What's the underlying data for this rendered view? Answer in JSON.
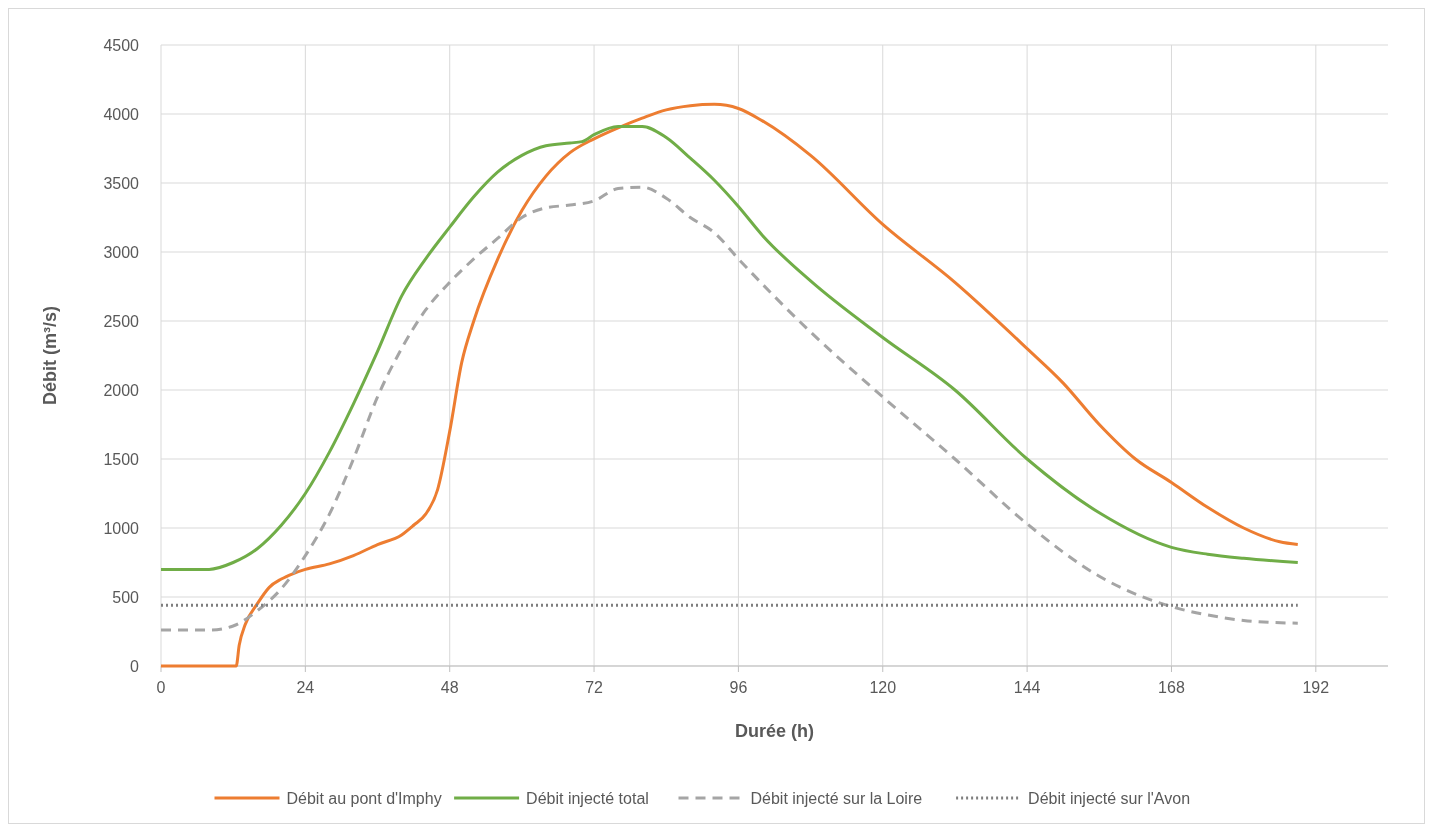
{
  "chart_data": {
    "type": "line",
    "xlabel": "Durée (h)",
    "ylabel": "Débit (m³/s)",
    "xlim": [
      0,
      204
    ],
    "xticks": [
      0,
      24,
      48,
      72,
      96,
      120,
      144,
      168,
      192
    ],
    "ylim": [
      0,
      4500
    ],
    "yticks": [
      0,
      500,
      1000,
      1500,
      2000,
      2500,
      3000,
      3500,
      4000,
      4500
    ],
    "grid": true,
    "legend": "bottom",
    "series": [
      {
        "name": "Débit au pont d'Imphy",
        "color": "#ed7d31",
        "line_style": "solid",
        "x": [
          0,
          12.5,
          13,
          14,
          16,
          18,
          20,
          22,
          24,
          28,
          32,
          36,
          40,
          42,
          44,
          46,
          48,
          50,
          52,
          56,
          60,
          64,
          68,
          72,
          76,
          80,
          84,
          88,
          92,
          96,
          100,
          108,
          120,
          132,
          144,
          150,
          156,
          162,
          168,
          174,
          180,
          186,
          189
        ],
        "values": [
          0,
          0,
          150,
          300,
          450,
          570,
          630,
          670,
          700,
          740,
          800,
          880,
          950,
          1020,
          1100,
          1280,
          1700,
          2200,
          2500,
          2950,
          3300,
          3550,
          3720,
          3820,
          3900,
          3970,
          4030,
          4060,
          4070,
          4040,
          3950,
          3700,
          3200,
          2780,
          2300,
          2050,
          1750,
          1500,
          1330,
          1150,
          1000,
          900,
          880
        ]
      },
      {
        "name": "Débit injecté total",
        "color": "#70ad47",
        "line_style": "solid",
        "x": [
          0,
          8,
          12,
          16,
          20,
          24,
          28,
          32,
          36,
          40,
          44,
          48,
          52,
          56,
          60,
          64,
          68,
          70,
          72,
          76,
          80,
          84,
          88,
          92,
          96,
          100,
          108,
          120,
          132,
          144,
          156,
          168,
          174,
          180,
          189
        ],
        "values": [
          700,
          700,
          750,
          850,
          1020,
          1250,
          1550,
          1900,
          2280,
          2680,
          2950,
          3180,
          3400,
          3580,
          3700,
          3770,
          3790,
          3800,
          3850,
          3910,
          3910,
          3830,
          3680,
          3520,
          3330,
          3120,
          2790,
          2380,
          2000,
          1500,
          1110,
          860,
          810,
          780,
          750
        ]
      },
      {
        "name": "Débit injecté sur la Loire",
        "color": "#a5a5a5",
        "line_style": "dashed",
        "x": [
          0,
          8,
          12,
          16,
          20,
          24,
          28,
          32,
          36,
          40,
          44,
          48,
          52,
          56,
          60,
          64,
          68,
          72,
          76,
          80,
          84,
          88,
          92,
          96,
          108,
          120,
          132,
          144,
          156,
          168,
          174,
          180,
          189
        ],
        "values": [
          260,
          260,
          290,
          400,
          560,
          800,
          1100,
          1500,
          1950,
          2300,
          2580,
          2780,
          2950,
          3100,
          3250,
          3320,
          3340,
          3370,
          3460,
          3470,
          3390,
          3250,
          3140,
          2950,
          2420,
          1950,
          1500,
          1030,
          650,
          430,
          370,
          330,
          310
        ]
      },
      {
        "name": "Débit injecté sur l'Avon",
        "color": "#7f7f7f",
        "line_style": "dotted",
        "x": [
          0,
          189
        ],
        "values": [
          440,
          440
        ]
      }
    ]
  }
}
